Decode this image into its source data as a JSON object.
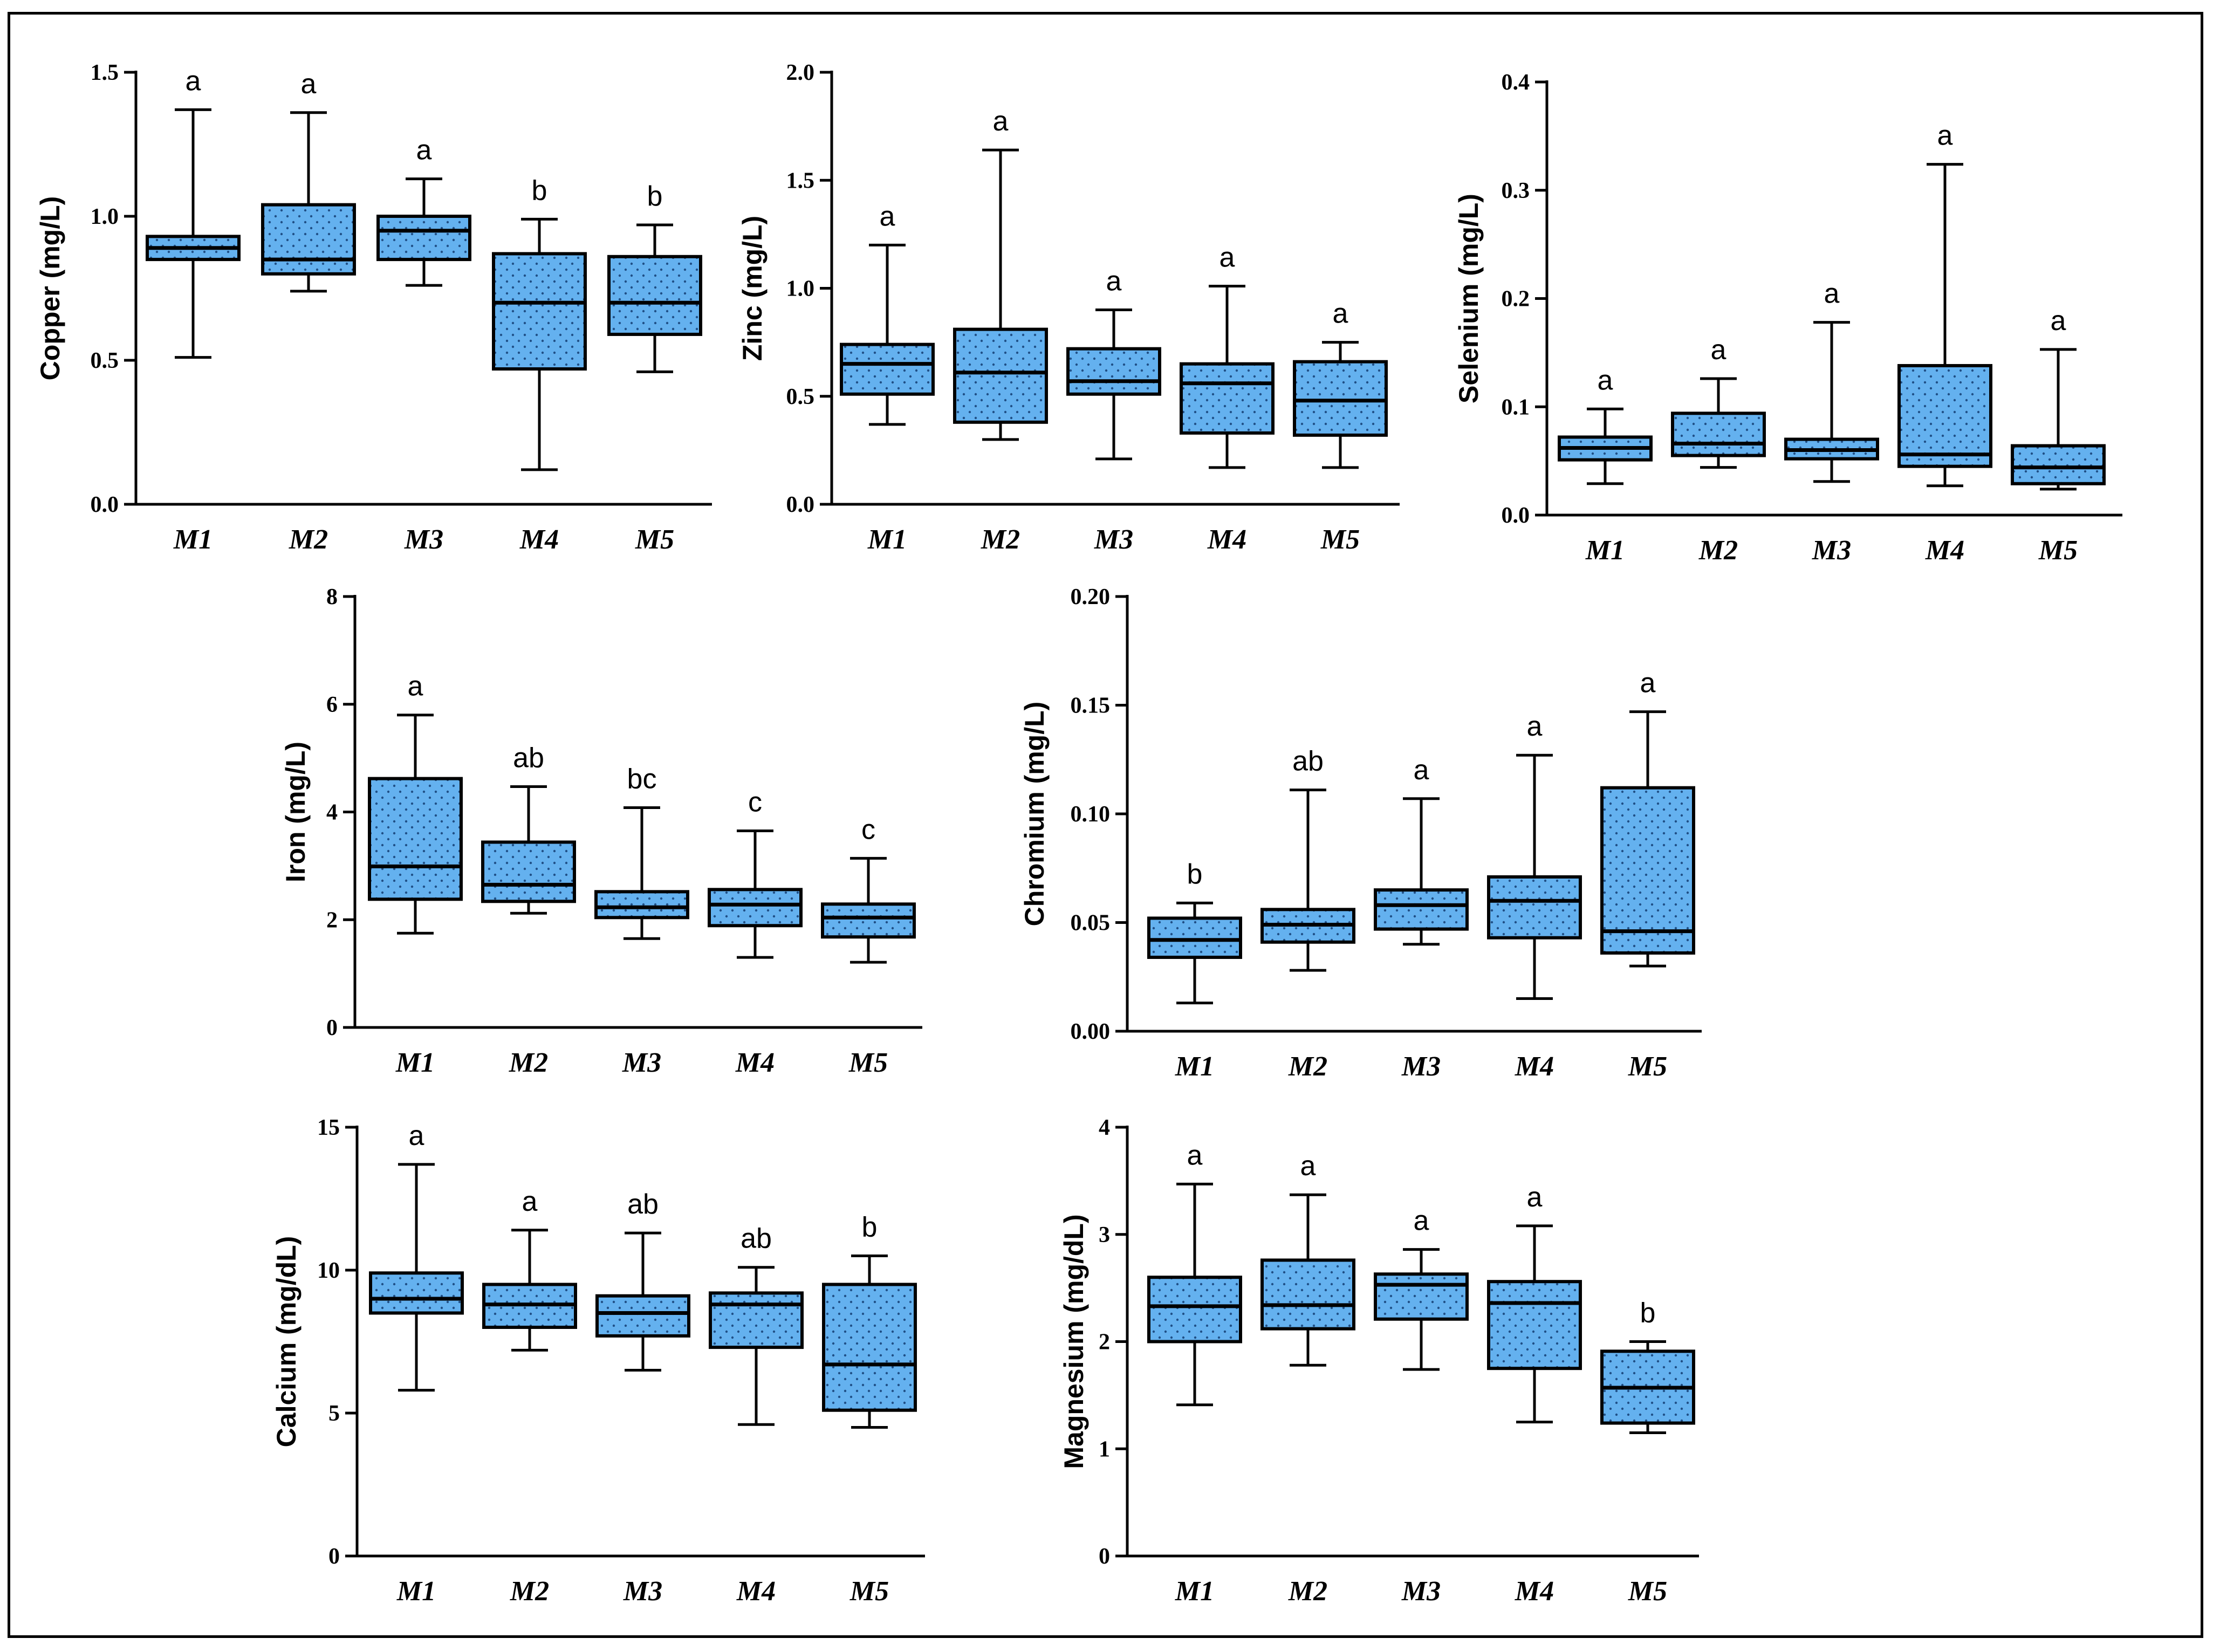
{
  "chart_data": [
    {
      "id": "copper",
      "type": "box",
      "ylabel": "Copper (mg/L)",
      "ylim": [
        0,
        1.5
      ],
      "yticks": [
        "0.0",
        "0.5",
        "1.0",
        "1.5"
      ],
      "categories": [
        "M1",
        "M2",
        "M3",
        "M4",
        "M5"
      ],
      "boxes": [
        {
          "min": 0.51,
          "q1": 0.85,
          "median": 0.89,
          "q3": 0.93,
          "max": 1.37,
          "letter": "a"
        },
        {
          "min": 0.74,
          "q1": 0.8,
          "median": 0.85,
          "q3": 1.04,
          "max": 1.36,
          "letter": "a"
        },
        {
          "min": 0.76,
          "q1": 0.85,
          "median": 0.95,
          "q3": 1.0,
          "max": 1.13,
          "letter": "a"
        },
        {
          "min": 0.12,
          "q1": 0.47,
          "median": 0.7,
          "q3": 0.87,
          "max": 0.99,
          "letter": "b"
        },
        {
          "min": 0.46,
          "q1": 0.59,
          "median": 0.7,
          "q3": 0.86,
          "max": 0.97,
          "letter": "b"
        }
      ]
    },
    {
      "id": "zinc",
      "type": "box",
      "ylabel": "Zinc (mg/L)",
      "ylim": [
        0,
        2.0
      ],
      "yticks": [
        "0.0",
        "0.5",
        "1.0",
        "1.5",
        "2.0"
      ],
      "categories": [
        "M1",
        "M2",
        "M3",
        "M4",
        "M5"
      ],
      "boxes": [
        {
          "min": 0.37,
          "q1": 0.51,
          "median": 0.65,
          "q3": 0.74,
          "max": 1.2,
          "letter": "a"
        },
        {
          "min": 0.3,
          "q1": 0.38,
          "median": 0.61,
          "q3": 0.81,
          "max": 1.64,
          "letter": "a"
        },
        {
          "min": 0.21,
          "q1": 0.51,
          "median": 0.57,
          "q3": 0.72,
          "max": 0.9,
          "letter": "a"
        },
        {
          "min": 0.17,
          "q1": 0.33,
          "median": 0.56,
          "q3": 0.65,
          "max": 1.01,
          "letter": "a"
        },
        {
          "min": 0.17,
          "q1": 0.32,
          "median": 0.48,
          "q3": 0.66,
          "max": 0.75,
          "letter": "a"
        }
      ]
    },
    {
      "id": "selenium",
      "type": "box",
      "ylabel": "Selenium (mg/L)",
      "ylim": [
        0,
        0.4
      ],
      "yticks": [
        "0.0",
        "0.1",
        "0.2",
        "0.3",
        "0.4"
      ],
      "categories": [
        "M1",
        "M2",
        "M3",
        "M4",
        "M5"
      ],
      "boxes": [
        {
          "min": 0.029,
          "q1": 0.051,
          "median": 0.062,
          "q3": 0.072,
          "max": 0.098,
          "letter": "a"
        },
        {
          "min": 0.044,
          "q1": 0.055,
          "median": 0.066,
          "q3": 0.094,
          "max": 0.126,
          "letter": "a"
        },
        {
          "min": 0.031,
          "q1": 0.052,
          "median": 0.06,
          "q3": 0.07,
          "max": 0.178,
          "letter": "a"
        },
        {
          "min": 0.027,
          "q1": 0.045,
          "median": 0.056,
          "q3": 0.138,
          "max": 0.324,
          "letter": "a"
        },
        {
          "min": 0.024,
          "q1": 0.029,
          "median": 0.044,
          "q3": 0.064,
          "max": 0.153,
          "letter": "a"
        }
      ]
    },
    {
      "id": "iron",
      "type": "box",
      "ylabel": "Iron (mg/L)",
      "ylim": [
        0,
        8
      ],
      "yticks": [
        "0",
        "2",
        "4",
        "6",
        "8"
      ],
      "categories": [
        "M1",
        "M2",
        "M3",
        "M4",
        "M5"
      ],
      "boxes": [
        {
          "min": 1.75,
          "q1": 2.38,
          "median": 2.99,
          "q3": 4.62,
          "max": 5.8,
          "letter": "a"
        },
        {
          "min": 2.12,
          "q1": 2.34,
          "median": 2.65,
          "q3": 3.44,
          "max": 4.47,
          "letter": "ab"
        },
        {
          "min": 1.65,
          "q1": 2.04,
          "median": 2.23,
          "q3": 2.52,
          "max": 4.08,
          "letter": "bc"
        },
        {
          "min": 1.3,
          "q1": 1.89,
          "median": 2.28,
          "q3": 2.56,
          "max": 3.65,
          "letter": "c"
        },
        {
          "min": 1.21,
          "q1": 1.68,
          "median": 2.04,
          "q3": 2.29,
          "max": 3.14,
          "letter": "c"
        }
      ]
    },
    {
      "id": "chromium",
      "type": "box",
      "ylabel": "Chromium (mg/L)",
      "ylim": [
        0,
        0.2
      ],
      "yticks": [
        "0.00",
        "0.05",
        "0.10",
        "0.15",
        "0.20"
      ],
      "categories": [
        "M1",
        "M2",
        "M3",
        "M4",
        "M5"
      ],
      "boxes": [
        {
          "min": 0.013,
          "q1": 0.034,
          "median": 0.042,
          "q3": 0.052,
          "max": 0.059,
          "letter": "b"
        },
        {
          "min": 0.028,
          "q1": 0.041,
          "median": 0.049,
          "q3": 0.056,
          "max": 0.111,
          "letter": "ab"
        },
        {
          "min": 0.04,
          "q1": 0.047,
          "median": 0.058,
          "q3": 0.065,
          "max": 0.107,
          "letter": "a"
        },
        {
          "min": 0.015,
          "q1": 0.043,
          "median": 0.06,
          "q3": 0.071,
          "max": 0.127,
          "letter": "a"
        },
        {
          "min": 0.03,
          "q1": 0.036,
          "median": 0.046,
          "q3": 0.112,
          "max": 0.147,
          "letter": "a"
        }
      ]
    },
    {
      "id": "calcium",
      "type": "box",
      "ylabel": "Calcium (mg/dL)",
      "ylim": [
        0,
        15
      ],
      "yticks": [
        "0",
        "5",
        "10",
        "15"
      ],
      "categories": [
        "M1",
        "M2",
        "M3",
        "M4",
        "M5"
      ],
      "boxes": [
        {
          "min": 5.8,
          "q1": 8.5,
          "median": 9.0,
          "q3": 9.9,
          "max": 13.7,
          "letter": "a"
        },
        {
          "min": 7.2,
          "q1": 8.0,
          "median": 8.8,
          "q3": 9.5,
          "max": 11.4,
          "letter": "a"
        },
        {
          "min": 6.5,
          "q1": 7.7,
          "median": 8.5,
          "q3": 9.1,
          "max": 11.3,
          "letter": "ab"
        },
        {
          "min": 4.6,
          "q1": 7.3,
          "median": 8.8,
          "q3": 9.2,
          "max": 10.1,
          "letter": "ab"
        },
        {
          "min": 4.5,
          "q1": 5.1,
          "median": 6.7,
          "q3": 9.5,
          "max": 10.5,
          "letter": "b"
        }
      ]
    },
    {
      "id": "magnesium",
      "type": "box",
      "ylabel": "Magnesium (mg/dL)",
      "ylim": [
        0,
        4
      ],
      "yticks": [
        "0",
        "1",
        "2",
        "3",
        "4"
      ],
      "categories": [
        "M1",
        "M2",
        "M3",
        "M4",
        "M5"
      ],
      "boxes": [
        {
          "min": 1.41,
          "q1": 2.0,
          "median": 2.33,
          "q3": 2.6,
          "max": 3.47,
          "letter": "a"
        },
        {
          "min": 1.78,
          "q1": 2.12,
          "median": 2.34,
          "q3": 2.76,
          "max": 3.37,
          "letter": "a"
        },
        {
          "min": 1.74,
          "q1": 2.21,
          "median": 2.53,
          "q3": 2.63,
          "max": 2.86,
          "letter": "a"
        },
        {
          "min": 1.25,
          "q1": 1.75,
          "median": 2.36,
          "q3": 2.56,
          "max": 3.08,
          "letter": "a"
        },
        {
          "min": 1.15,
          "q1": 1.24,
          "median": 1.57,
          "q3": 1.91,
          "max": 2.0,
          "letter": "b"
        }
      ]
    }
  ]
}
